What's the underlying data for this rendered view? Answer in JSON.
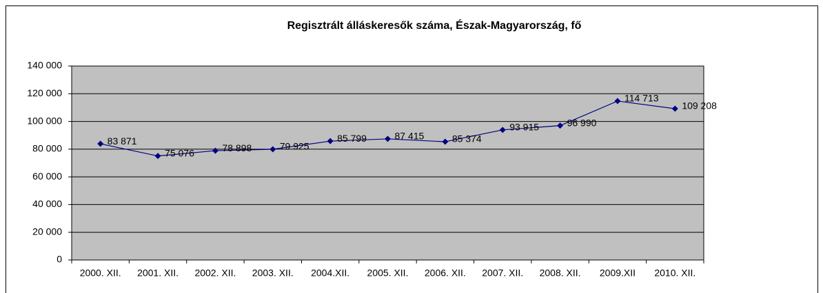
{
  "chart_data": {
    "type": "line",
    "title": "Regisztrált álláskeresők száma, Észak-Magyarország, fő",
    "categories": [
      "2000. XII.",
      "2001. XII.",
      "2002. XII.",
      "2003. XII.",
      "2004.XII.",
      "2005. XII.",
      "2006. XII.",
      "2007. XII.",
      "2008. XII.",
      "2009.XII",
      "2010. XII."
    ],
    "series": [
      {
        "name": null,
        "color": "#000080",
        "values": [
          83871,
          75076,
          78898,
          79925,
          85799,
          87415,
          85374,
          93915,
          96990,
          114713,
          109208
        ],
        "value_labels": [
          "83 871",
          "75 076",
          "78 898",
          "79 925",
          "85 799",
          "87 415",
          "85 374",
          "93 915",
          "96 990",
          "114 713",
          "109 208"
        ]
      }
    ],
    "ylim": [
      0,
      140000
    ],
    "yticks": [
      {
        "value": 0,
        "label": "0"
      },
      {
        "value": 20000,
        "label": "20 000"
      },
      {
        "value": 40000,
        "label": "40 000"
      },
      {
        "value": 60000,
        "label": "60 000"
      },
      {
        "value": 80000,
        "label": "80 000"
      },
      {
        "value": 100000,
        "label": "100 000"
      },
      {
        "value": 120000,
        "label": "120 000"
      },
      {
        "value": 140000,
        "label": "140 000"
      }
    ],
    "grid": true,
    "plot_background": "#c0c0c0"
  }
}
